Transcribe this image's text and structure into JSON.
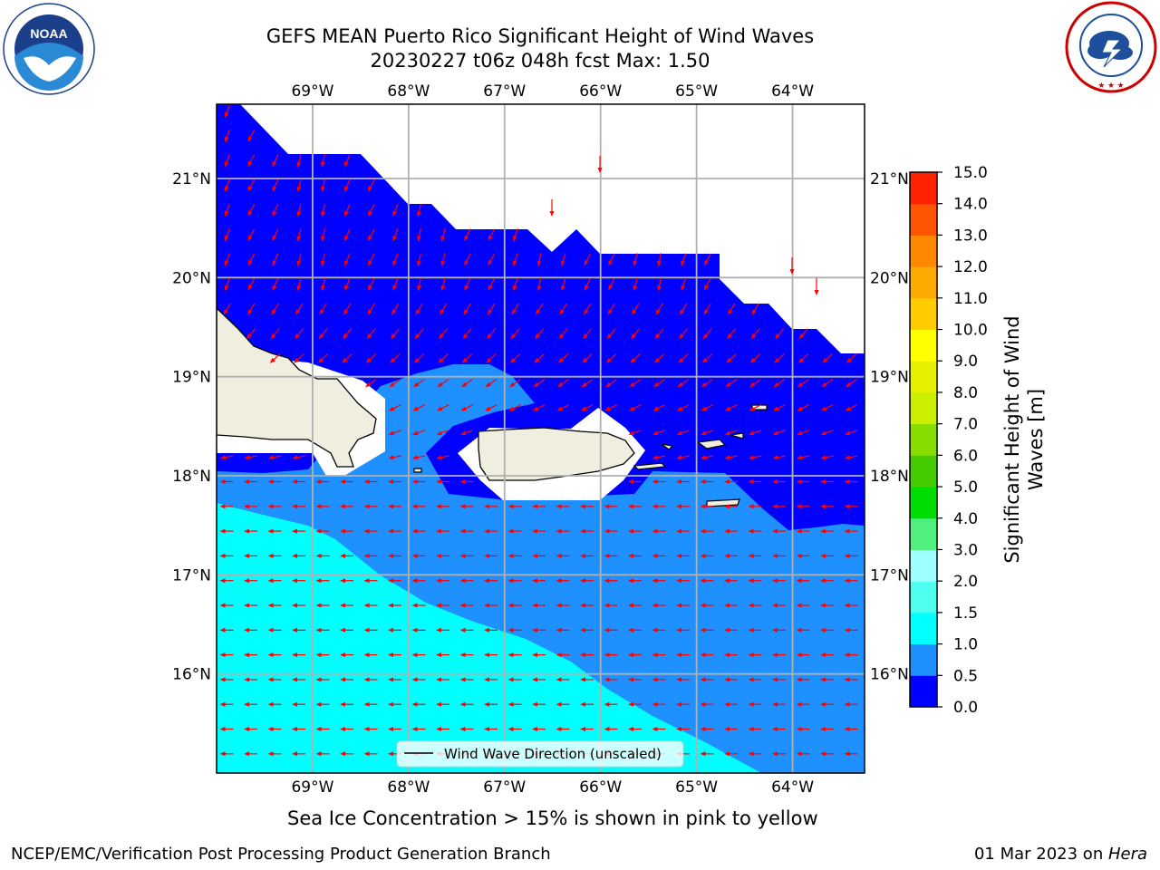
{
  "title": {
    "line1": "GEFS MEAN Puerto Rico Significant Height of Wind Waves",
    "line2": "20230227 t06z 048h fcst   Max: 1.50"
  },
  "logos": {
    "left": "noaa-logo",
    "right": "nws-logo"
  },
  "map": {
    "lon_ticks": [
      "69°W",
      "68°W",
      "67°W",
      "66°W",
      "65°W",
      "64°W"
    ],
    "lat_ticks": [
      "21°N",
      "20°N",
      "19°N",
      "18°N",
      "17°N",
      "16°N"
    ],
    "lon_range": [
      -70.0,
      -63.25
    ],
    "lat_range": [
      15.0,
      21.75
    ],
    "legend_label": "Wind Wave Direction (unscaled)",
    "colors": {
      "land": "#efeedf",
      "ocean_low": "#0000ff",
      "ocean_mid": "#1e90ff",
      "ocean_high": "#00ffff",
      "arrow": "#ff0000",
      "grid": "#b0b0b0"
    }
  },
  "colorbar": {
    "label_line1": "Significant Height of Wind",
    "label_line2": "Waves [m]",
    "ticks": [
      "0.0",
      "0.5",
      "1.0",
      "1.5",
      "2.0",
      "3.0",
      "4.0",
      "5.0",
      "6.0",
      "7.0",
      "8.0",
      "9.0",
      "10.0",
      "11.0",
      "12.0",
      "13.0",
      "14.0",
      "15.0"
    ],
    "colors": [
      "#0000ff",
      "#1e90ff",
      "#00ffff",
      "#4ffff0",
      "#a0ffff",
      "#50f080",
      "#00dd00",
      "#44cc00",
      "#88dd00",
      "#ccee00",
      "#e6f000",
      "#ffff00",
      "#ffcc00",
      "#ffaa00",
      "#ff8800",
      "#ff5500",
      "#ff2200"
    ]
  },
  "footer": {
    "note": "Sea Ice Concentration > 15% is shown in pink to yellow",
    "org": "NCEP/EMC/Verification Post Processing Product Generation Branch",
    "date": "01 Mar 2023 on ",
    "machine": "Hera"
  }
}
